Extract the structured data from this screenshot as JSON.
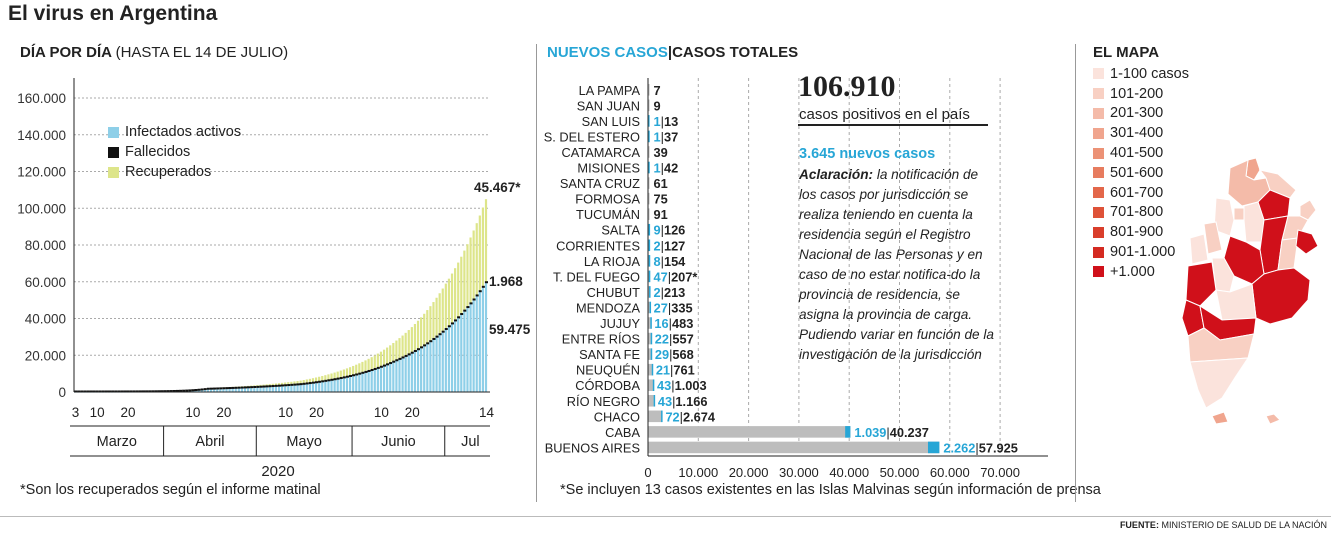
{
  "title": "El virus en Argentina",
  "left": {
    "heading_bold": "DÍA POR DÍA",
    "heading_light": "(HASTA EL 14 DE JULIO)",
    "legend": [
      {
        "label": "Infectados activos",
        "color": "#8ecfe8"
      },
      {
        "label": "Fallecidos",
        "color": "#111111"
      },
      {
        "label": "Recuperados",
        "color": "#dde58a"
      }
    ],
    "y_ticks": [
      "160.000",
      "140.000",
      "120.000",
      "100.000",
      "80.000",
      "60.000",
      "40.000",
      "20.000",
      "0"
    ],
    "day_ticks": [
      "3",
      "10",
      "20",
      "10",
      "20",
      "10",
      "20",
      "10",
      "20",
      "14"
    ],
    "months": [
      "Marzo",
      "Abril",
      "Mayo",
      "Junio",
      "Jul"
    ],
    "year": "2020",
    "annotations": {
      "total": "45.467*",
      "deaths": "1.968",
      "active": "59.475"
    },
    "note": "*Son los recuperados según el informe matinal"
  },
  "middle": {
    "heading_new": "NUEVOS CASOS",
    "heading_sep": "|",
    "heading_total": "CASOS TOTALES",
    "total_big": "106.910",
    "total_caption": "casos positivos en el país",
    "new_cases": "3.645 nuevos casos",
    "aclaracion_label": "Aclaración:",
    "aclaracion_text": "la notificación de los casos por jurisdicción se realiza teniendo en cuenta la residencia según el Registro Nacional de las Personas y en caso de no estar notifica-do la provincia de residencia, se asigna la provincia de carga. Pudiendo variar en función de la investigación de la jurisdicción",
    "x_ticks": [
      "0",
      "10.000",
      "20.000",
      "30.000",
      "40.000",
      "50.000",
      "60.000",
      "70.000"
    ],
    "note": "*Se incluyen 13 casos existentes en las Islas Malvinas según información de prensa"
  },
  "right": {
    "heading": "EL MAPA",
    "scale": [
      {
        "label": "1-100 casos",
        "color": "#fbe3dc"
      },
      {
        "label": "101-200",
        "color": "#f8d0c3"
      },
      {
        "label": "201-300",
        "color": "#f4bba9"
      },
      {
        "label": "301-400",
        "color": "#f0a58e"
      },
      {
        "label": "401-500",
        "color": "#ec9276"
      },
      {
        "label": "501-600",
        "color": "#e77c5f"
      },
      {
        "label": "601-700",
        "color": "#e3674a"
      },
      {
        "label": "701-800",
        "color": "#de5238"
      },
      {
        "label": "801-900",
        "color": "#d93e2b"
      },
      {
        "label": "901-1.000",
        "color": "#d42a21"
      },
      {
        "label": "+1.000",
        "color": "#d0101a"
      }
    ]
  },
  "footer": {
    "fuente_label": "FUENTE:",
    "fuente_text": "MINISTERIO DE SALUD DE LA NACIÓN"
  },
  "chart_data": [
    {
      "type": "bar",
      "stacked": true,
      "x_range": [
        "2020-03-03",
        "2020-07-14"
      ],
      "ylim": [
        0,
        160000
      ],
      "grid": true,
      "series": [
        {
          "name": "Infectados activos",
          "values_sampled": [
            {
              "x": "2020-03-03",
              "y": 1
            },
            {
              "x": "2020-04-15",
              "y": 1500
            },
            {
              "x": "2020-05-15",
              "y": 4000
            },
            {
              "x": "2020-06-15",
              "y": 17000
            },
            {
              "x": "2020-07-01",
              "y": 34000
            },
            {
              "x": "2020-07-14",
              "y": 59475
            }
          ]
        },
        {
          "name": "Fallecidos",
          "values_sampled": [
            {
              "x": "2020-03-03",
              "y": 0
            },
            {
              "x": "2020-05-15",
              "y": 350
            },
            {
              "x": "2020-06-15",
              "y": 800
            },
            {
              "x": "2020-07-14",
              "y": 1968
            }
          ]
        },
        {
          "name": "Recuperados",
          "values_sampled": [
            {
              "x": "2020-03-03",
              "y": 0
            },
            {
              "x": "2020-04-15",
              "y": 600
            },
            {
              "x": "2020-05-15",
              "y": 2200
            },
            {
              "x": "2020-06-15",
              "y": 11000
            },
            {
              "x": "2020-07-01",
              "y": 25000
            },
            {
              "x": "2020-07-14",
              "y": 45467
            }
          ]
        }
      ]
    },
    {
      "type": "bar",
      "orientation": "horizontal",
      "xlim": [
        0,
        70000
      ],
      "categories": [
        "LA PAMPA",
        "SAN JUAN",
        "SAN LUIS",
        "S. DEL ESTERO",
        "CATAMARCA",
        "MISIONES",
        "SANTA CRUZ",
        "FORMOSA",
        "TUCUMÁN",
        "SALTA",
        "CORRIENTES",
        "LA RIOJA",
        "T. DEL FUEGO",
        "CHUBUT",
        "MENDOZA",
        "JUJUY",
        "ENTRE RÍOS",
        "SANTA FE",
        "NEUQUÉN",
        "CÓRDOBA",
        "RÍO NEGRO",
        "CHACO",
        "CABA",
        "BUENOS AIRES"
      ],
      "series": [
        {
          "name": "NUEVOS CASOS",
          "values": [
            0,
            0,
            1,
            1,
            0,
            1,
            0,
            0,
            0,
            9,
            2,
            8,
            47,
            2,
            27,
            16,
            22,
            29,
            21,
            43,
            43,
            72,
            1039,
            2262
          ],
          "labels": [
            "",
            "",
            "1",
            "1",
            "",
            "1",
            "",
            "",
            "",
            "9",
            "2",
            "8",
            "47",
            "2",
            "27",
            "16",
            "22",
            "29",
            "21",
            "43",
            "43",
            "72",
            "1.039",
            "2.262"
          ]
        },
        {
          "name": "CASOS TOTALES",
          "values": [
            7,
            9,
            13,
            37,
            39,
            42,
            61,
            75,
            91,
            126,
            127,
            154,
            207,
            213,
            335,
            483,
            557,
            568,
            761,
            1003,
            1166,
            2674,
            40237,
            57925
          ],
          "labels": [
            "7",
            "9",
            "13",
            "37",
            "39",
            "42",
            "61",
            "75",
            "91",
            "126",
            "127",
            "154",
            "207*",
            "213",
            "335",
            "483",
            "557",
            "568",
            "761",
            "1.003",
            "1.166",
            "2.674",
            "40.237",
            "57.925"
          ]
        }
      ]
    }
  ]
}
